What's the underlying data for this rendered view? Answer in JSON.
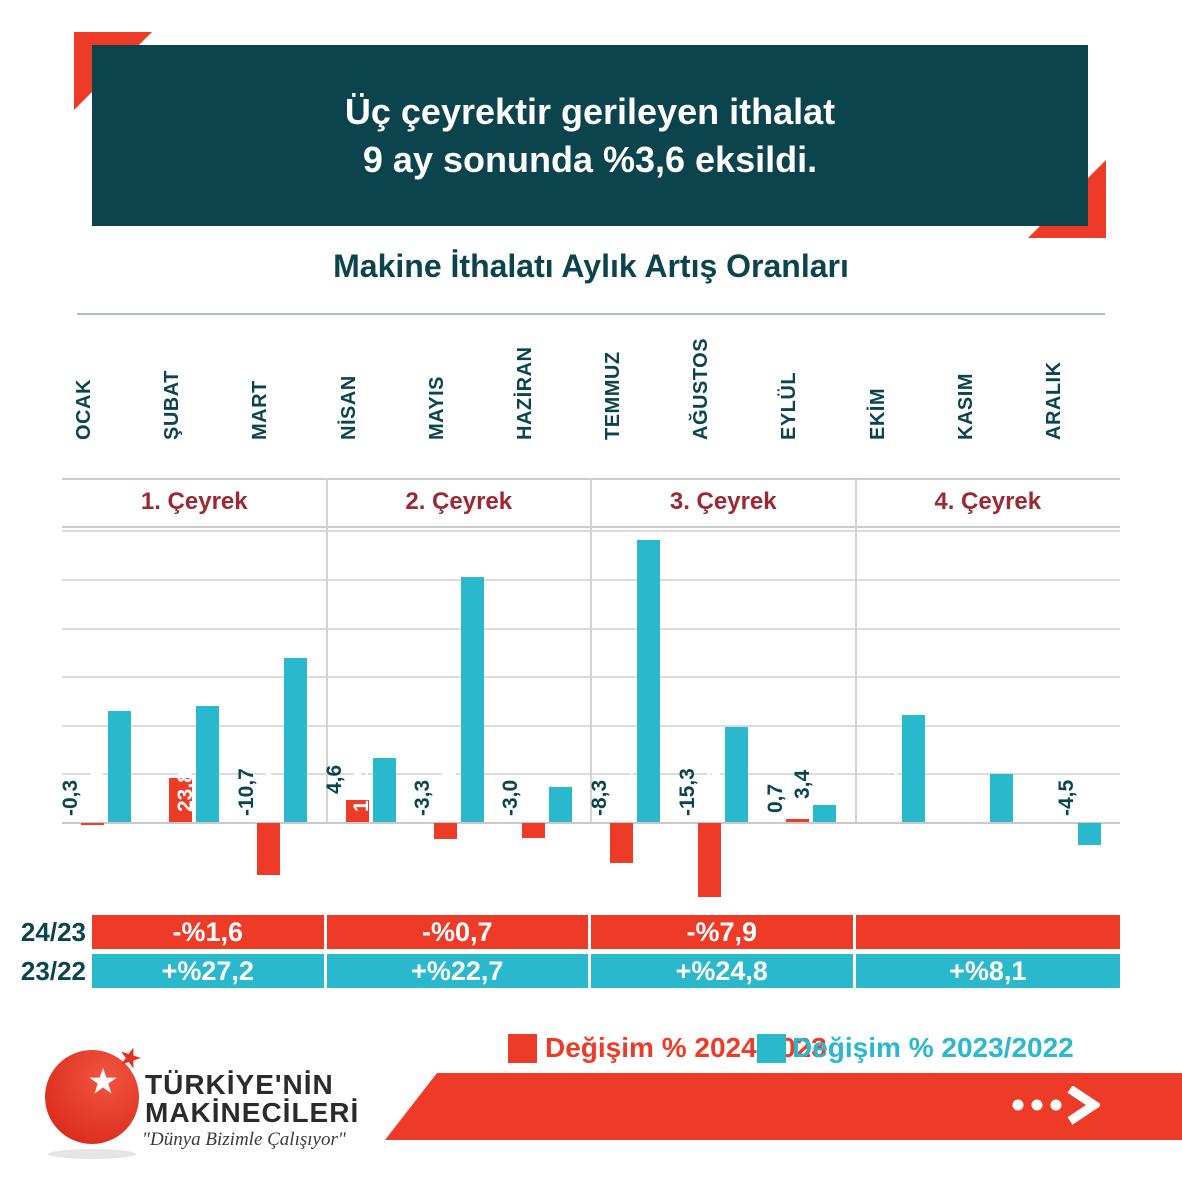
{
  "header": {
    "title_line1": "Üç çeyrektir gerileyen ithalat",
    "title_line2": "9 ay sonunda %3,6 eksildi."
  },
  "subtitle": "Makine İthalatı Aylık Artış Oranları",
  "chart_data": {
    "type": "bar",
    "title": "Makine İthalatı Aylık Artış Oranları",
    "categories": [
      "OCAK",
      "ŞUBAT",
      "MART",
      "NİSAN",
      "MAYIS",
      "HAZİRAN",
      "TEMMUZ",
      "AĞUSTOS",
      "EYLÜL",
      "EKİM",
      "KASIM",
      "ARALIK"
    ],
    "quarters": [
      "1. Çeyrek",
      "2. Çeyrek",
      "3. Çeyrek",
      "4. Çeyrek"
    ],
    "series": [
      {
        "name": "Değişim % 2024/2023",
        "color": "#ee3b28",
        "values": [
          -0.3,
          9.0,
          -10.7,
          4.6,
          -3.3,
          -3.0,
          -8.3,
          -15.3,
          0.7,
          null,
          null,
          null
        ],
        "labels": [
          "-0,3",
          "9,0",
          "-10,7",
          "4,6",
          "-3,3",
          "-3,0",
          "-8,3",
          "-15,3",
          "0,7",
          "",
          "",
          ""
        ]
      },
      {
        "name": "Değişim % 2023/2022",
        "color": "#2ab8cc",
        "values": [
          22.9,
          23.8,
          33.7,
          13.2,
          50.4,
          7.2,
          58.1,
          19.6,
          3.4,
          22.1,
          9.8,
          -4.5
        ],
        "labels": [
          "22,9",
          "23,8",
          "33,7",
          "13,2",
          "50,4",
          "7,2",
          "58,1",
          "19,6",
          "3,4",
          "22,1",
          "9,8",
          "-4,5"
        ]
      }
    ],
    "ylim": [
      -20,
      60
    ],
    "grid": true,
    "legend_position": "bottom"
  },
  "summary": {
    "rows": [
      {
        "label": "24/23",
        "color": "#ee3b28",
        "cells": [
          "-%1,6",
          "-%0,7",
          "-%7,9",
          ""
        ]
      },
      {
        "label": "23/22",
        "color": "#2ab8cc",
        "cells": [
          "+%27,2",
          "+%22,7",
          "+%24,8",
          "+%8,1"
        ]
      }
    ]
  },
  "legend": [
    {
      "label": "Değişim % 2024/2023",
      "color": "#ee3b28"
    },
    {
      "label": "Değişim % 2023/2022",
      "color": "#2ab8cc"
    }
  ],
  "logo": {
    "name_line1": "TÜRKİYE'NİN",
    "name_line2": "MAKİNECİLERİ",
    "tagline": "\"Dünya Bizimle Çalışıyor\""
  },
  "colors": {
    "red": "#ee3b28",
    "cyan": "#2ab8cc",
    "teal": "#0b444d",
    "maroon": "#9e2832"
  }
}
